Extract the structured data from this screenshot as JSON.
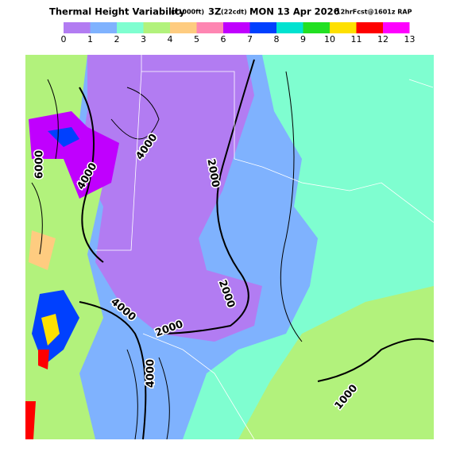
{
  "header": {
    "title_parts": [
      "Thermal Height Variability",
      "(x1000ft)",
      "3Z",
      "(22cdt)",
      "MON 13 Apr 2026",
      "12hrFcst@1601z RAP"
    ]
  },
  "colorbar": {
    "labels": [
      0,
      1,
      2,
      3,
      4,
      5,
      6,
      7,
      8,
      9,
      10,
      11,
      12,
      13
    ],
    "colors": [
      "#b27cf2",
      "#7fb2fe",
      "#7ffed0",
      "#b2f27c",
      "#fecc80",
      "#fe86b2",
      "#c000fe",
      "#0040fe",
      "#00e2d0",
      "#22e022",
      "#fee000",
      "#fe0000",
      "#fe00fe"
    ]
  },
  "map": {
    "contour_labels": [
      "4000",
      "6000",
      "4000",
      "2000",
      "2000",
      "4000",
      "2000",
      "4000",
      "1000"
    ]
  }
}
